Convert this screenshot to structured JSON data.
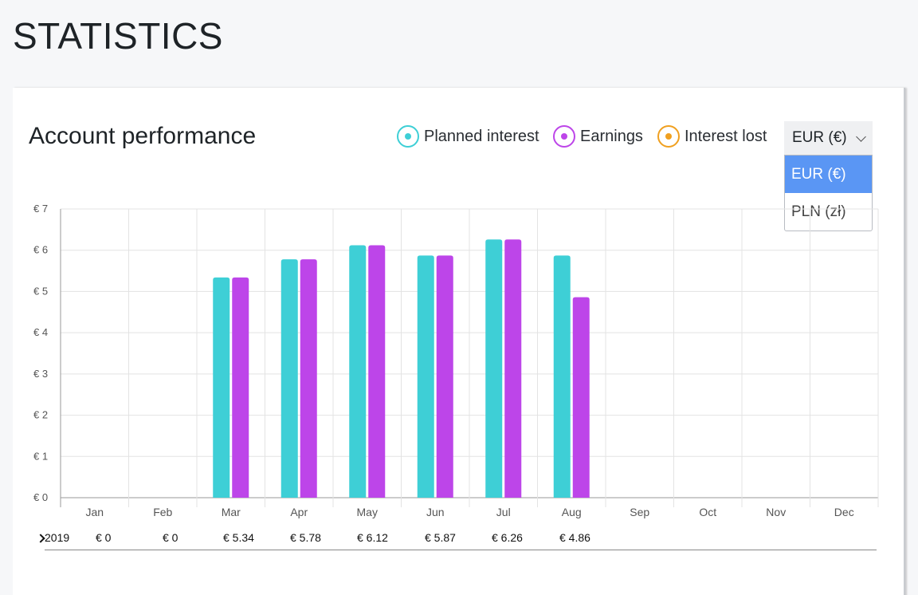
{
  "page": {
    "title": "STATISTICS"
  },
  "card": {
    "title": "Account performance",
    "legend": [
      {
        "label": "Planned interest",
        "color": "#3ecfd6"
      },
      {
        "label": "Earnings",
        "color": "#bd45e9"
      },
      {
        "label": "Interest lost",
        "color": "#f0a020"
      }
    ],
    "currency_select": {
      "value": "EUR (€)",
      "options": [
        "EUR (€)",
        "PLN (zł)"
      ]
    }
  },
  "chart_data": {
    "type": "bar",
    "categories": [
      "Jan",
      "Feb",
      "Mar",
      "Apr",
      "May",
      "Jun",
      "Jul",
      "Aug",
      "Sep",
      "Oct",
      "Nov",
      "Dec"
    ],
    "series": [
      {
        "name": "Planned interest",
        "color": "#3ecfd6",
        "values": [
          0,
          0,
          5.34,
          5.78,
          6.12,
          5.87,
          6.26,
          5.87,
          null,
          null,
          null,
          null
        ]
      },
      {
        "name": "Earnings",
        "color": "#bd45e9",
        "values": [
          0,
          0,
          5.34,
          5.78,
          6.12,
          5.87,
          6.26,
          4.86,
          null,
          null,
          null,
          null
        ]
      }
    ],
    "y_ticks": [
      "€ 0",
      "€ 1",
      "€ 2",
      "€ 3",
      "€ 4",
      "€ 5",
      "€ 6",
      "€ 7"
    ],
    "ylim": [
      0,
      7
    ],
    "grid": true
  },
  "summary_row": {
    "year": "2019",
    "values": [
      "€ 0",
      "€ 0",
      "€ 5.34",
      "€ 5.78",
      "€ 6.12",
      "€ 5.87",
      "€ 6.26",
      "€ 4.86"
    ]
  }
}
